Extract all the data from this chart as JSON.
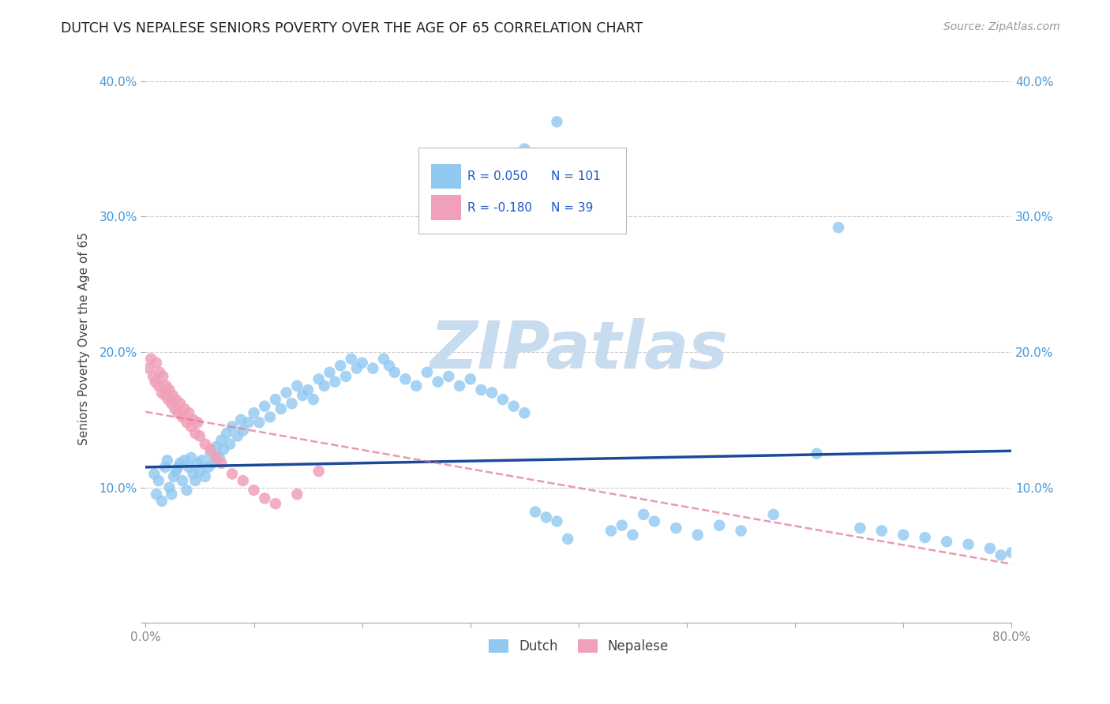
{
  "title": "DUTCH VS NEPALESE SENIORS POVERTY OVER THE AGE OF 65 CORRELATION CHART",
  "source": "Source: ZipAtlas.com",
  "ylabel": "Seniors Poverty Over the Age of 65",
  "xlim": [
    0.0,
    0.8
  ],
  "ylim": [
    0.0,
    0.42
  ],
  "xticks": [
    0.0,
    0.1,
    0.2,
    0.3,
    0.4,
    0.5,
    0.6,
    0.7,
    0.8
  ],
  "yticks": [
    0.0,
    0.1,
    0.2,
    0.3,
    0.4
  ],
  "xticklabels": [
    "0.0%",
    "",
    "",
    "",
    "",
    "",
    "",
    "",
    "80.0%"
  ],
  "yticklabels": [
    "",
    "10.0%",
    "20.0%",
    "30.0%",
    "40.0%"
  ],
  "dutch_color": "#90C8F0",
  "nepalese_color": "#F0A0B8",
  "dutch_R": 0.05,
  "dutch_N": 101,
  "nepalese_R": -0.18,
  "nepalese_N": 39,
  "dutch_line_color": "#1A4A9A",
  "nepalese_line_color": "#E07090",
  "watermark": "ZIPatlas",
  "watermark_color": "#C8DCF0",
  "legend_color": "#1A56CC",
  "background_color": "#FFFFFF",
  "grid_color": "#CCCCCC",
  "dutch_x": [
    0.008,
    0.01,
    0.012,
    0.015,
    0.018,
    0.02,
    0.022,
    0.024,
    0.026,
    0.028,
    0.03,
    0.032,
    0.034,
    0.036,
    0.038,
    0.04,
    0.042,
    0.044,
    0.046,
    0.048,
    0.05,
    0.052,
    0.055,
    0.058,
    0.06,
    0.062,
    0.065,
    0.068,
    0.07,
    0.072,
    0.075,
    0.078,
    0.08,
    0.085,
    0.088,
    0.09,
    0.095,
    0.1,
    0.105,
    0.11,
    0.115,
    0.12,
    0.125,
    0.13,
    0.135,
    0.14,
    0.145,
    0.15,
    0.155,
    0.16,
    0.165,
    0.17,
    0.175,
    0.18,
    0.185,
    0.19,
    0.195,
    0.2,
    0.21,
    0.22,
    0.225,
    0.23,
    0.24,
    0.25,
    0.26,
    0.27,
    0.28,
    0.29,
    0.3,
    0.31,
    0.32,
    0.33,
    0.34,
    0.35,
    0.36,
    0.37,
    0.38,
    0.39,
    0.4,
    0.42,
    0.43,
    0.44,
    0.45,
    0.46,
    0.47,
    0.49,
    0.51,
    0.53,
    0.55,
    0.58,
    0.62,
    0.64,
    0.66,
    0.68,
    0.7,
    0.72,
    0.74,
    0.76,
    0.78,
    0.79,
    0.8
  ],
  "dutch_y": [
    0.11,
    0.095,
    0.105,
    0.09,
    0.115,
    0.12,
    0.1,
    0.095,
    0.108,
    0.112,
    0.115,
    0.118,
    0.105,
    0.12,
    0.098,
    0.115,
    0.122,
    0.11,
    0.105,
    0.118,
    0.112,
    0.12,
    0.108,
    0.115,
    0.125,
    0.118,
    0.13,
    0.122,
    0.135,
    0.128,
    0.14,
    0.132,
    0.145,
    0.138,
    0.15,
    0.142,
    0.148,
    0.155,
    0.148,
    0.16,
    0.152,
    0.165,
    0.158,
    0.17,
    0.162,
    0.175,
    0.168,
    0.172,
    0.165,
    0.18,
    0.175,
    0.185,
    0.178,
    0.19,
    0.182,
    0.195,
    0.188,
    0.192,
    0.188,
    0.195,
    0.19,
    0.185,
    0.18,
    0.175,
    0.185,
    0.178,
    0.182,
    0.175,
    0.18,
    0.172,
    0.17,
    0.165,
    0.16,
    0.155,
    0.082,
    0.078,
    0.075,
    0.062,
    0.35,
    0.07,
    0.068,
    0.072,
    0.065,
    0.08,
    0.075,
    0.07,
    0.065,
    0.072,
    0.068,
    0.08,
    0.125,
    0.292,
    0.07,
    0.068,
    0.065,
    0.063,
    0.06,
    0.058,
    0.055,
    0.05,
    0.052
  ],
  "nepalese_x": [
    0.003,
    0.005,
    0.007,
    0.009,
    0.01,
    0.012,
    0.013,
    0.015,
    0.016,
    0.018,
    0.019,
    0.021,
    0.022,
    0.024,
    0.025,
    0.027,
    0.028,
    0.03,
    0.032,
    0.034,
    0.036,
    0.038,
    0.04,
    0.042,
    0.044,
    0.046,
    0.048,
    0.05,
    0.055,
    0.06,
    0.065,
    0.07,
    0.08,
    0.09,
    0.1,
    0.11,
    0.12,
    0.14,
    0.16
  ],
  "nepalese_y": [
    0.188,
    0.195,
    0.182,
    0.178,
    0.192,
    0.175,
    0.185,
    0.17,
    0.182,
    0.168,
    0.175,
    0.165,
    0.172,
    0.162,
    0.168,
    0.158,
    0.165,
    0.155,
    0.162,
    0.152,
    0.158,
    0.148,
    0.155,
    0.145,
    0.15,
    0.14,
    0.148,
    0.138,
    0.132,
    0.128,
    0.122,
    0.118,
    0.11,
    0.105,
    0.098,
    0.092,
    0.088,
    0.095,
    0.112
  ]
}
